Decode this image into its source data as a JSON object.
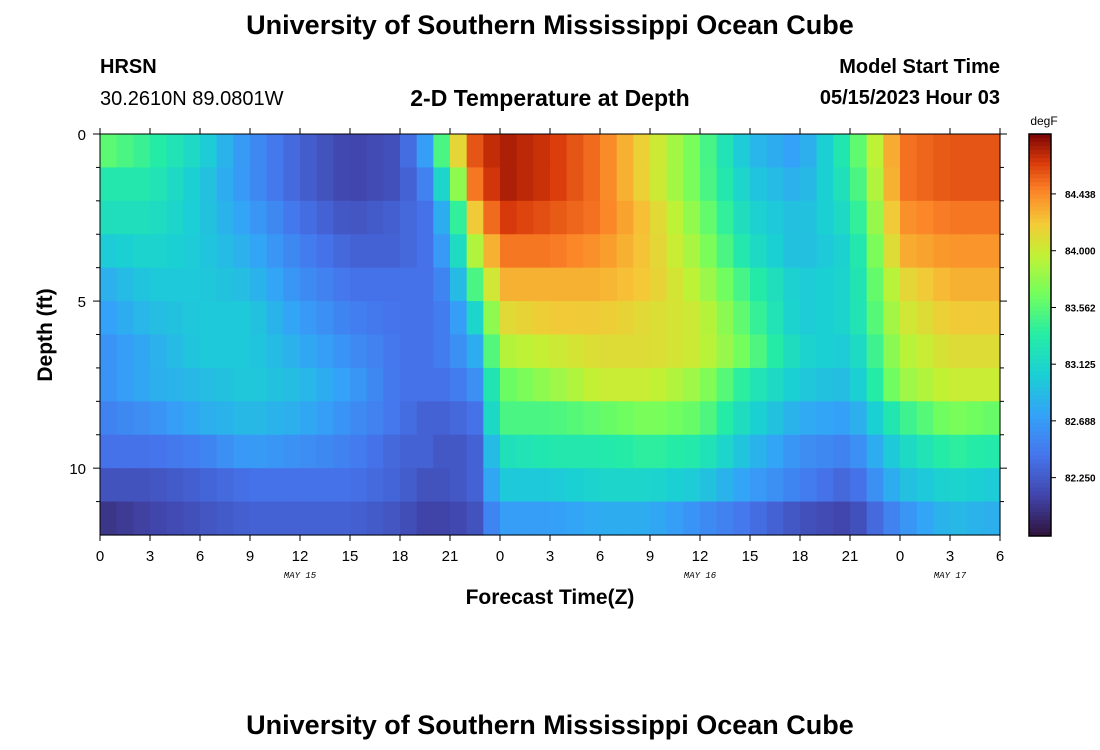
{
  "page": {
    "title": "University of Southern Mississippi Ocean Cube",
    "station": "HRSN",
    "coords": "30.2610N  89.0801W",
    "subtitle": "2-D Temperature at Depth",
    "model_start_label": "Model Start Time",
    "model_start_value": "05/15/2023 Hour 03",
    "bottom_title": "University of Southern Mississippi Ocean Cube"
  },
  "chart_data": {
    "type": "heatmap",
    "title": "2-D Temperature at Depth",
    "xlabel": "Forecast Time(Z)",
    "ylabel": "Depth (ft)",
    "x_hours_range": [
      0,
      54
    ],
    "x_tick_hours": [
      0,
      3,
      6,
      9,
      12,
      15,
      18,
      21,
      24,
      27,
      30,
      33,
      36,
      39,
      42,
      45,
      48,
      51,
      54
    ],
    "x_tick_labels": [
      "0",
      "3",
      "6",
      "9",
      "12",
      "15",
      "18",
      "21",
      "0",
      "3",
      "6",
      "9",
      "12",
      "15",
      "18",
      "21",
      "0",
      "3",
      "6"
    ],
    "date_labels": [
      {
        "hour": 12,
        "text": "MAY 15"
      },
      {
        "hour": 36,
        "text": "MAY 16"
      },
      {
        "hour": 51,
        "text": "MAY 17"
      }
    ],
    "ylim": [
      0,
      12
    ],
    "y_ticks": [
      0,
      5,
      10
    ],
    "y_minor_ticks": [
      1,
      2,
      3,
      4,
      6,
      7,
      8,
      9,
      11
    ],
    "colorbar": {
      "unit": "degF",
      "range": [
        81.8,
        84.9
      ],
      "ticks": [
        "82.250",
        "82.688",
        "83.125",
        "83.562",
        "84.000",
        "84.438"
      ]
    },
    "depth_rows_ft": [
      0.5,
      1.5,
      2.5,
      3.5,
      4.5,
      5.5,
      6.5,
      7.5,
      8.5,
      9.5,
      10.5,
      11.5
    ],
    "time_keyframes_hours": [
      0,
      3,
      6,
      9,
      12,
      15,
      18,
      19.5,
      21,
      22.5,
      24,
      27,
      30,
      33,
      36,
      39,
      42,
      45,
      48,
      51,
      54
    ],
    "temperature_degF": [
      [
        83.6,
        83.4,
        83.1,
        82.6,
        82.3,
        82.1,
        82.2,
        82.7,
        83.9,
        84.6,
        84.8,
        84.7,
        84.5,
        84.1,
        83.6,
        82.9,
        82.7,
        83.4,
        84.5,
        84.6,
        84.6
      ],
      [
        83.3,
        83.3,
        83.0,
        82.6,
        82.3,
        82.1,
        82.2,
        82.5,
        83.4,
        84.5,
        84.8,
        84.7,
        84.5,
        84.1,
        83.6,
        83.0,
        82.8,
        83.3,
        84.5,
        84.6,
        84.6
      ],
      [
        83.2,
        83.2,
        83.0,
        82.7,
        82.4,
        82.2,
        82.3,
        82.4,
        83.0,
        84.2,
        84.7,
        84.6,
        84.5,
        84.2,
        83.7,
        83.1,
        82.9,
        83.2,
        84.4,
        84.5,
        84.5
      ],
      [
        83.0,
        83.1,
        83.0,
        82.8,
        82.5,
        82.3,
        82.3,
        82.4,
        82.8,
        83.9,
        84.5,
        84.5,
        84.4,
        84.2,
        83.8,
        83.2,
        82.9,
        83.1,
        84.3,
        84.4,
        84.4
      ],
      [
        82.8,
        83.0,
        83.0,
        82.9,
        82.6,
        82.4,
        82.4,
        82.4,
        82.6,
        83.5,
        84.3,
        84.3,
        84.3,
        84.2,
        83.9,
        83.4,
        83.0,
        83.1,
        84.1,
        84.3,
        84.3
      ],
      [
        82.7,
        82.9,
        83.0,
        83.0,
        82.7,
        82.5,
        82.4,
        82.4,
        82.5,
        83.1,
        84.1,
        84.2,
        84.2,
        84.1,
        84.0,
        83.5,
        83.0,
        83.1,
        84.0,
        84.2,
        84.2
      ],
      [
        82.6,
        82.8,
        83.0,
        83.0,
        82.8,
        82.6,
        82.4,
        82.4,
        82.5,
        82.8,
        83.9,
        84.0,
        84.1,
        84.1,
        84.0,
        83.6,
        83.1,
        83.0,
        83.9,
        84.1,
        84.1
      ],
      [
        82.6,
        82.8,
        82.9,
        83.0,
        82.9,
        82.7,
        82.4,
        82.4,
        82.4,
        82.6,
        83.6,
        83.8,
        84.0,
        84.0,
        83.8,
        83.3,
        83.0,
        82.9,
        83.8,
        84.0,
        84.0
      ],
      [
        82.5,
        82.6,
        82.8,
        82.9,
        82.8,
        82.6,
        82.4,
        82.3,
        82.3,
        82.4,
        83.5,
        83.5,
        83.6,
        83.7,
        83.6,
        83.1,
        82.8,
        82.7,
        83.4,
        83.7,
        83.6
      ],
      [
        82.4,
        82.4,
        82.5,
        82.7,
        82.6,
        82.5,
        82.3,
        82.3,
        82.2,
        82.3,
        83.2,
        83.3,
        83.3,
        83.4,
        83.3,
        82.9,
        82.6,
        82.5,
        83.1,
        83.4,
        83.3
      ],
      [
        82.2,
        82.2,
        82.3,
        82.4,
        82.4,
        82.4,
        82.3,
        82.2,
        82.2,
        82.3,
        83.0,
        83.0,
        83.1,
        83.1,
        83.0,
        82.7,
        82.5,
        82.3,
        82.9,
        83.1,
        83.0
      ],
      [
        82.0,
        82.1,
        82.2,
        82.3,
        82.3,
        82.3,
        82.2,
        82.1,
        82.1,
        82.2,
        82.7,
        82.7,
        82.8,
        82.8,
        82.6,
        82.4,
        82.2,
        82.1,
        82.6,
        82.9,
        82.8
      ]
    ]
  }
}
